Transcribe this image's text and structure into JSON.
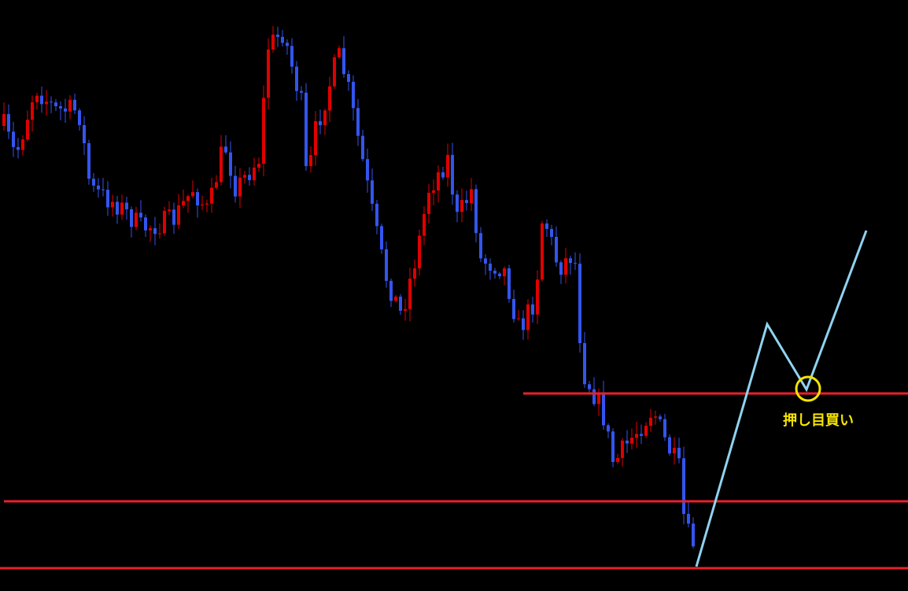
{
  "annotation": "押し目買い"
}
